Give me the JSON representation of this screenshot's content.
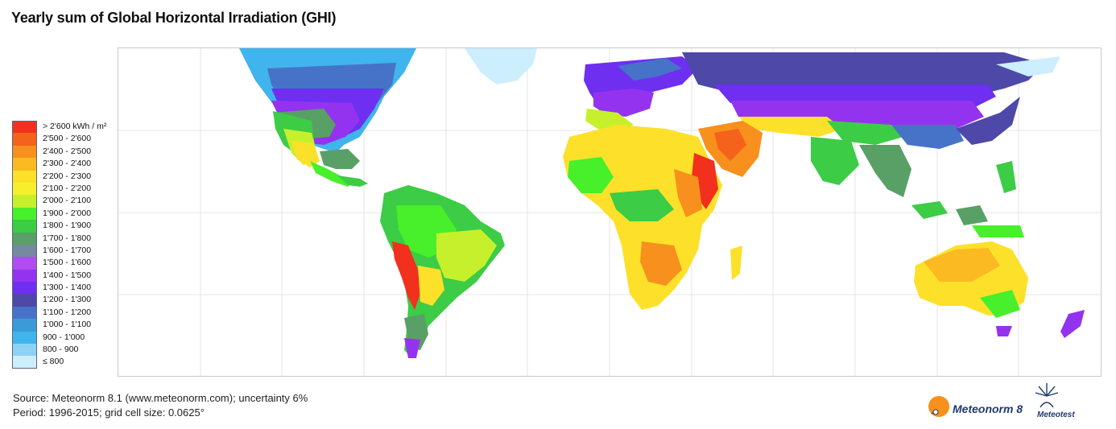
{
  "title": "Yearly sum of Global Horizontal Irradiation (GHI)",
  "legend": {
    "items": [
      {
        "label": "> 2'600 kWh / m²",
        "color": "#f2301e"
      },
      {
        "label": "2'500 - 2'600",
        "color": "#f5621b"
      },
      {
        "label": "2'400 - 2'500",
        "color": "#f7901d"
      },
      {
        "label": "2'300 - 2'400",
        "color": "#fbb922"
      },
      {
        "label": "2'200 - 2'300",
        "color": "#fde02a"
      },
      {
        "label": "2'100 - 2'200",
        "color": "#f7ef2c"
      },
      {
        "label": "2'000 - 2'100",
        "color": "#c6f02c"
      },
      {
        "label": "1'900 - 2'000",
        "color": "#48ef2b"
      },
      {
        "label": "1'800 - 1'900",
        "color": "#3ccc46"
      },
      {
        "label": "1'700 - 1'800",
        "color": "#58a065"
      },
      {
        "label": "1'600 - 1'700",
        "color": "#758a9e"
      },
      {
        "label": "1'500 - 1'600",
        "color": "#b04cf0"
      },
      {
        "label": "1'400 - 1'500",
        "color": "#9433ef"
      },
      {
        "label": "1'300 - 1'400",
        "color": "#6e2ff0"
      },
      {
        "label": "1'200 - 1'300",
        "color": "#4e48a8"
      },
      {
        "label": "1'100 - 1'200",
        "color": "#4673c8"
      },
      {
        "label": "1'000 - 1'100",
        "color": "#3c9ad8"
      },
      {
        "label": "900 - 1'000",
        "color": "#40b4ec"
      },
      {
        "label": "800 - 900",
        "color": "#8dd2f5"
      },
      {
        "label": "≤ 800",
        "color": "#cdeefc"
      }
    ]
  },
  "source_line1": "Source: Meteonorm 8.1 (www.meteonorm.com); uncertainty 6%",
  "source_line2": "Period: 1996-2015; grid cell size: 0.0625°",
  "logo_meteonorm": "Meteonorm 8",
  "logo_meteotest": "Meteotest"
}
